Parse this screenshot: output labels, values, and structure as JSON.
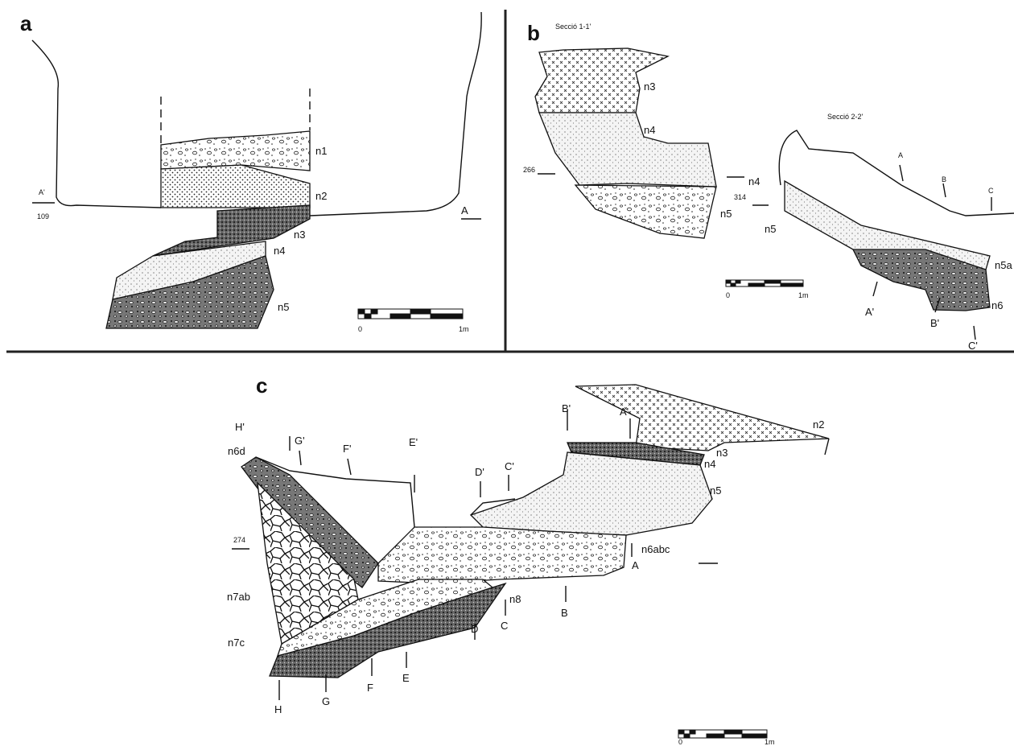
{
  "panels": [
    {
      "letter": "a",
      "labels": [
        "n1",
        "n2",
        "n3",
        "n4",
        "n5",
        "A'",
        "109",
        "A",
        "0",
        "1m"
      ]
    },
    {
      "letter": "b",
      "labels": [
        "Secció 1-1'",
        "n3",
        "n4",
        "266",
        "n4",
        "314",
        "n5",
        "n5",
        "Secció 2-2'",
        "A",
        "B",
        "C",
        "n5a",
        "n6",
        "A'",
        "B'",
        "C'",
        "0",
        "1m"
      ]
    },
    {
      "letter": "c",
      "labels": [
        "n2",
        "H'",
        "G'",
        "F'",
        "E'",
        "D'",
        "C'",
        "B'",
        "A'",
        "n6d",
        "n3",
        "n4",
        "n5",
        "274",
        "n6abc",
        "A",
        "n7ab",
        "n8",
        "B",
        "C",
        "D",
        "n7c",
        "E",
        "F",
        "G",
        "H",
        "0",
        "1m"
      ]
    }
  ]
}
